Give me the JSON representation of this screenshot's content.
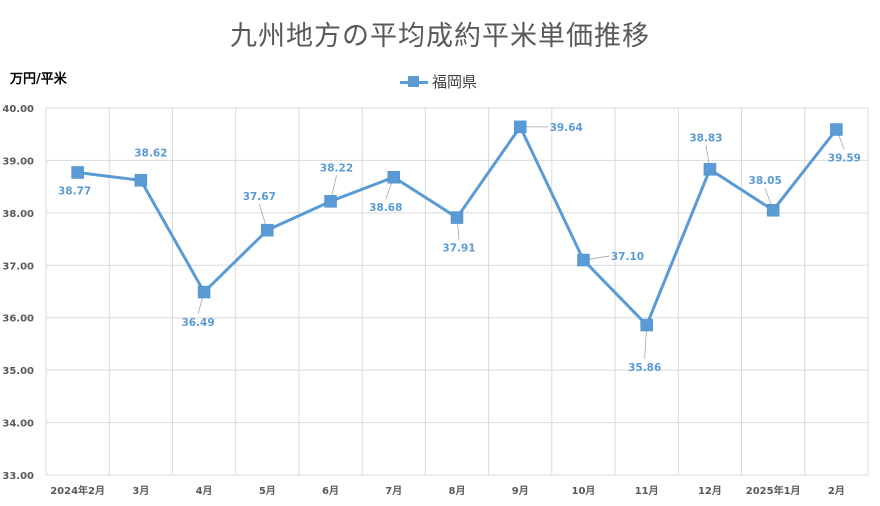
{
  "chart_data": {
    "type": "line",
    "title": "九州地方の平均成約平米単価推移",
    "ylabel": "万円/平米",
    "xlabel": "",
    "categories": [
      "2024年2月",
      "3月",
      "4月",
      "5月",
      "6月",
      "7月",
      "8月",
      "9月",
      "10月",
      "11月",
      "12月",
      "2025年1月",
      "2月"
    ],
    "series": [
      {
        "name": "福岡県",
        "values": [
          38.77,
          38.62,
          36.49,
          37.67,
          38.22,
          38.68,
          37.91,
          39.64,
          37.1,
          35.86,
          38.83,
          38.05,
          39.59
        ],
        "labels": [
          "38.77",
          "38.62",
          "36.49",
          "37.67",
          "38.22",
          "38.68",
          "37.91",
          "39.64",
          "37.10",
          "35.86",
          "38.83",
          "38.05",
          "39.59"
        ]
      }
    ],
    "y_ticks": [
      "33.00",
      "34.00",
      "35.00",
      "36.00",
      "37.00",
      "38.00",
      "39.00",
      "40.00"
    ],
    "ylim": [
      33,
      40
    ],
    "grid": true,
    "legend_position": "top",
    "colors": {
      "series": "#5B9BD5",
      "grid": "#D9D9D9",
      "text": "#595959"
    }
  }
}
